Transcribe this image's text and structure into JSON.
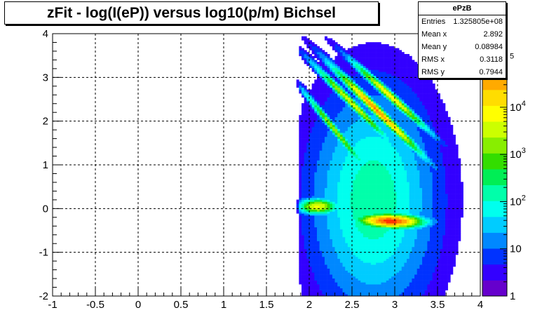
{
  "chart_data": {
    "type": "heatmap",
    "title": "zFit - log(I(eP)) versus log10(p/m) Bichsel",
    "xlim": [
      -1,
      4
    ],
    "ylim": [
      -2,
      4
    ],
    "x_ticks": [
      "-1",
      "-0.5",
      "0",
      "0.5",
      "1",
      "1.5",
      "2",
      "2.5",
      "3",
      "3.5",
      "4"
    ],
    "y_ticks": [
      "-2",
      "-1",
      "0",
      "1",
      "2",
      "3",
      "4"
    ],
    "z_scale": "log",
    "z_ticks": [
      {
        "mantissa": "1",
        "exponent": ""
      },
      {
        "mantissa": "10",
        "exponent": ""
      },
      {
        "mantissa": "10",
        "exponent": "2"
      },
      {
        "mantissa": "10",
        "exponent": "3"
      },
      {
        "mantissa": "10",
        "exponent": "4"
      },
      {
        "mantissa": "",
        "exponent": "5"
      }
    ],
    "grid": true,
    "palette": [
      "#6600cc",
      "#3300ff",
      "#0033ff",
      "#0088ff",
      "#00ccff",
      "#00ffee",
      "#00ffaa",
      "#00ee55",
      "#33dd00",
      "#88ee00",
      "#ccff00",
      "#ffff00",
      "#ffdd00",
      "#ffaa00",
      "#ff7700",
      "#ff3300"
    ],
    "stats": {
      "name": "ePzB",
      "entries": {
        "label": "Entries",
        "value": "1.325805e+08"
      },
      "mean_x": {
        "label": "Mean x",
        "value": "2.892"
      },
      "mean_y": {
        "label": "Mean y",
        "value": "0.08984"
      },
      "rms_x": {
        "label": "RMS x",
        "value": "0.3118"
      },
      "rms_y": {
        "label": "RMS y",
        "value": "0.7944"
      }
    }
  }
}
